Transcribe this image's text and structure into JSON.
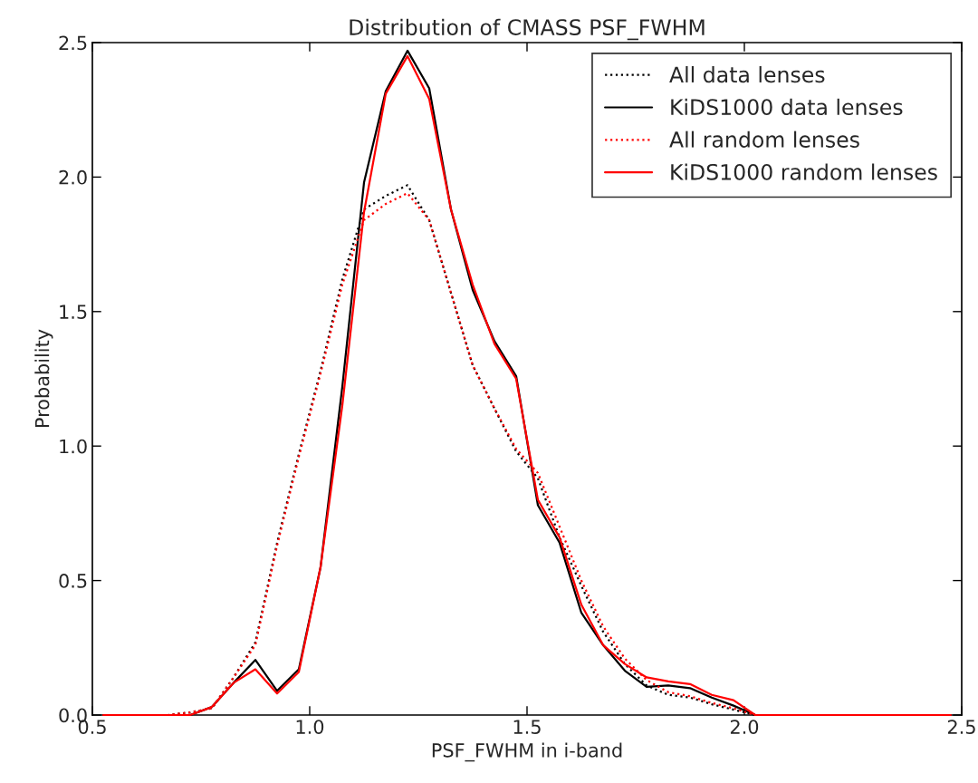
{
  "chart_data": {
    "type": "line",
    "title": "Distribution of CMASS PSF_FWHM",
    "xlabel": "PSF_FWHM in i-band",
    "ylabel": "Probability",
    "x": [
      0.525,
      0.575,
      0.625,
      0.675,
      0.725,
      0.775,
      0.825,
      0.875,
      0.925,
      0.975,
      1.025,
      1.075,
      1.125,
      1.175,
      1.225,
      1.275,
      1.325,
      1.375,
      1.425,
      1.475,
      1.525,
      1.575,
      1.625,
      1.675,
      1.725,
      1.775,
      1.825,
      1.875,
      1.925,
      1.975,
      2.025,
      2.075,
      2.125,
      2.175,
      2.225,
      2.275,
      2.325,
      2.375,
      2.425,
      2.475
    ],
    "series": [
      {
        "name": "All data lenses",
        "color": "#000000",
        "line_style": "dotted",
        "values": [
          0,
          0,
          0,
          0,
          0.01,
          0.025,
          0.14,
          0.27,
          0.64,
          0.97,
          1.28,
          1.62,
          1.88,
          1.93,
          1.97,
          1.84,
          1.57,
          1.3,
          1.14,
          0.98,
          0.88,
          0.66,
          0.48,
          0.31,
          0.19,
          0.11,
          0.075,
          0.065,
          0.04,
          0.02,
          0,
          0,
          0,
          0,
          0,
          0,
          0,
          0,
          0,
          0
        ]
      },
      {
        "name": "KiDS1000 data lenses",
        "color": "#000000",
        "line_style": "solid",
        "values": [
          0,
          0,
          0,
          0,
          0,
          0.03,
          0.12,
          0.205,
          0.09,
          0.17,
          0.55,
          1.22,
          1.98,
          2.32,
          2.47,
          2.33,
          1.88,
          1.58,
          1.39,
          1.26,
          0.78,
          0.64,
          0.38,
          0.26,
          0.165,
          0.105,
          0.11,
          0.1,
          0.065,
          0.035,
          0,
          0,
          0,
          0,
          0,
          0,
          0,
          0,
          0,
          0
        ]
      },
      {
        "name": "All random lenses",
        "color": "#ff0000",
        "line_style": "dotted",
        "values": [
          0,
          0,
          0,
          0,
          0.01,
          0.025,
          0.14,
          0.26,
          0.63,
          0.96,
          1.27,
          1.6,
          1.84,
          1.9,
          1.94,
          1.84,
          1.57,
          1.3,
          1.14,
          0.99,
          0.9,
          0.7,
          0.5,
          0.33,
          0.21,
          0.13,
          0.085,
          0.07,
          0.045,
          0.025,
          0,
          0,
          0,
          0,
          0,
          0,
          0,
          0,
          0,
          0
        ]
      },
      {
        "name": "KiDS1000 random lenses",
        "color": "#ff0000",
        "line_style": "solid",
        "values": [
          0,
          0,
          0,
          0,
          0,
          0.03,
          0.12,
          0.17,
          0.08,
          0.16,
          0.55,
          1.15,
          1.87,
          2.31,
          2.45,
          2.29,
          1.88,
          1.6,
          1.38,
          1.25,
          0.8,
          0.66,
          0.41,
          0.26,
          0.19,
          0.14,
          0.125,
          0.115,
          0.075,
          0.055,
          0,
          0,
          0,
          0,
          0,
          0,
          0,
          0,
          0,
          0
        ]
      }
    ],
    "xlim": [
      0.5,
      2.5
    ],
    "ylim": [
      0,
      2.5
    ],
    "xticks": [
      {
        "value": 0.5,
        "label": "0.5"
      },
      {
        "value": 1.0,
        "label": "1.0"
      },
      {
        "value": 1.5,
        "label": "1.5"
      },
      {
        "value": 2.0,
        "label": "2.0"
      },
      {
        "value": 2.5,
        "label": "2.5"
      }
    ],
    "yticks": [
      {
        "value": 0.0,
        "label": "0.0"
      },
      {
        "value": 0.5,
        "label": "0.5"
      },
      {
        "value": 1.0,
        "label": "1.0"
      },
      {
        "value": 1.5,
        "label": "1.5"
      },
      {
        "value": 2.0,
        "label": "2.0"
      },
      {
        "value": 2.5,
        "label": "2.5"
      }
    ],
    "grid": false,
    "legend": "top right",
    "marker": "none"
  }
}
